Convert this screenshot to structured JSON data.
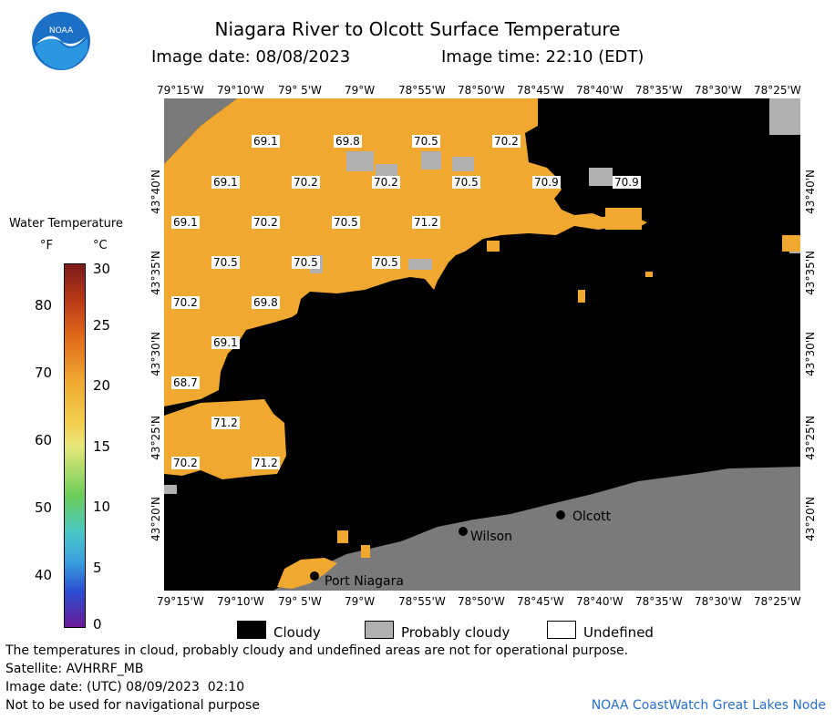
{
  "header": {
    "title": "Niagara River to Olcott Surface Temperature",
    "image_date": "Image date: 08/08/2023",
    "image_time": "Image time: 22:10 (EDT)"
  },
  "logo": {
    "text": "NOAA",
    "colors": {
      "circle": "#1b6fc4",
      "bird": "#ffffff",
      "sky": "#2a97e0"
    }
  },
  "axes": {
    "lon_labels": [
      "79°15'W",
      "79°10'W",
      "79° 5'W",
      "79°W",
      "78°55'W",
      "78°50'W",
      "78°45'W",
      "78°40'W",
      "78°35'W",
      "78°30'W",
      "78°25'W"
    ],
    "lat_labels": [
      "43°40'N",
      "43°35'N",
      "43°30'N",
      "43°25'N",
      "43°20'N"
    ]
  },
  "colorbar": {
    "title": "Water Temperature",
    "unit_f": "°F",
    "unit_c": "°C",
    "f_ticks": [
      "80",
      "70",
      "60",
      "50",
      "40"
    ],
    "c_ticks": [
      "30",
      "25",
      "20",
      "15",
      "10",
      "5",
      "0"
    ]
  },
  "temperature_labels": [
    {
      "text": "69.1"
    },
    {
      "text": "69.8"
    },
    {
      "text": "70.5"
    },
    {
      "text": "70.2"
    },
    {
      "text": "69.1"
    },
    {
      "text": "70.2"
    },
    {
      "text": "70.2"
    },
    {
      "text": "70.5"
    },
    {
      "text": "70.9"
    },
    {
      "text": "70.9"
    },
    {
      "text": "69.1"
    },
    {
      "text": "70.2"
    },
    {
      "text": "70.5"
    },
    {
      "text": "71.2"
    },
    {
      "text": "70.5"
    },
    {
      "text": "70.5"
    },
    {
      "text": "70.5"
    },
    {
      "text": "70.2"
    },
    {
      "text": "69.8"
    },
    {
      "text": "69.1"
    },
    {
      "text": "68.7"
    },
    {
      "text": "71.2"
    },
    {
      "text": "70.2"
    },
    {
      "text": "71.2"
    }
  ],
  "places": [
    {
      "name": "Olcott"
    },
    {
      "name": "Wilson"
    },
    {
      "name": "Port Niagara"
    }
  ],
  "legend": {
    "items": [
      {
        "label": "Cloudy",
        "color": "#000000"
      },
      {
        "label": "Probably cloudy",
        "color": "#b0b0b0"
      },
      {
        "label": "Undefined",
        "color": "#ffffff"
      }
    ]
  },
  "footer": {
    "disclaimer": "The temperatures in cloud, probably cloudy and undefined areas are not for operational purpose.",
    "satellite": "Satellite: AVHRRF_MB",
    "utc_date": "Image date: (UTC) 08/09/2023  02:10",
    "nav_warning": "Not to be used for navigational purpose",
    "credit": "NOAA CoastWatch Great Lakes Node"
  },
  "colors": {
    "water": "#f0a830",
    "land": "#7a7a7a",
    "cloud": "#000000",
    "probably_cloudy": "#b0b0b0",
    "credit": "#2a6fd0"
  }
}
